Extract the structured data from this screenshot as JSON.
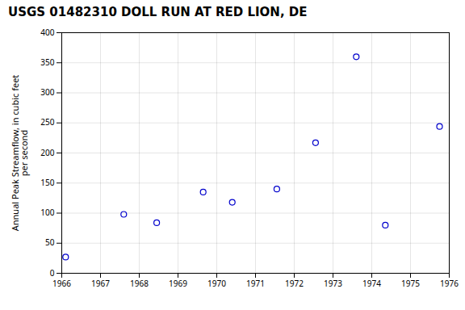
{
  "chart_data": {
    "type": "scatter",
    "title": "USGS 01482310 DOLL RUN AT RED LION, DE",
    "ylabel": "Annual Peak Streamflow, in cubic feet\nper second",
    "x": [
      1966.1,
      1967.6,
      1968.45,
      1969.65,
      1970.4,
      1971.55,
      1972.55,
      1973.6,
      1974.35,
      1975.75
    ],
    "values": [
      27,
      98,
      84,
      135,
      118,
      140,
      217,
      360,
      80,
      244
    ],
    "color": "#0000CC",
    "marker": "circle",
    "xlim": [
      1966,
      1976
    ],
    "ylim": [
      0,
      400
    ],
    "xticks": [
      1966,
      1967,
      1968,
      1969,
      1970,
      1971,
      1972,
      1973,
      1974,
      1975,
      1976
    ],
    "yticks": [
      0,
      50,
      100,
      150,
      200,
      250,
      300,
      350,
      400
    ],
    "grid": true
  }
}
